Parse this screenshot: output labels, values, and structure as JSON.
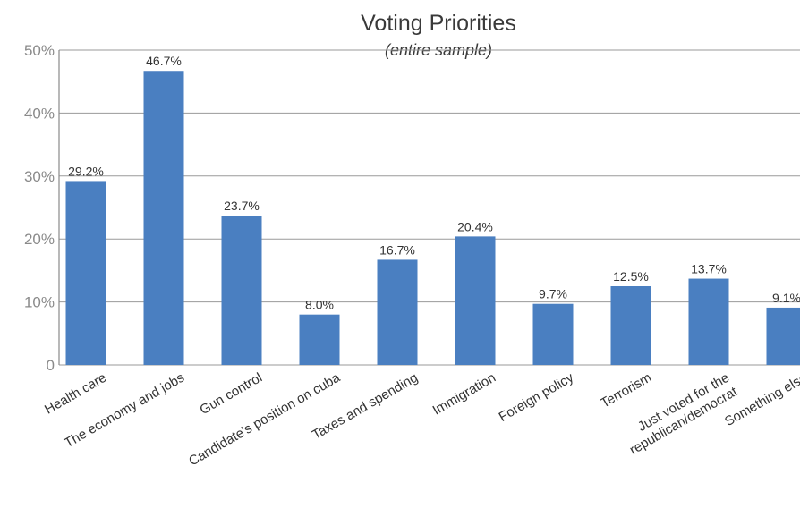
{
  "chart_data": {
    "type": "bar",
    "title": "Voting Priorities",
    "subtitle": "(entire sample)",
    "xlabel": "",
    "ylabel": "",
    "ylim": [
      0,
      50
    ],
    "y_ticks": [
      "0",
      "10%",
      "20%",
      "30%",
      "40%",
      "50%"
    ],
    "y_tick_values": [
      0,
      10,
      20,
      30,
      40,
      50
    ],
    "grid": true,
    "bar_color": "#4a7fc1",
    "categories": [
      [
        "Health care"
      ],
      [
        "The economy and jobs"
      ],
      [
        "Gun control"
      ],
      [
        "Candidate's position on cuba"
      ],
      [
        "Taxes and spending"
      ],
      [
        "Immigration"
      ],
      [
        "Foreign policy"
      ],
      [
        "Terrorism"
      ],
      [
        "Just voted for the",
        "republican/democrat"
      ],
      [
        "Something else"
      ]
    ],
    "values": [
      29.2,
      46.7,
      23.7,
      8.0,
      16.7,
      20.4,
      9.7,
      12.5,
      13.7,
      9.1
    ],
    "value_labels": [
      "29.2%",
      "46.7%",
      "23.7%",
      "8.0%",
      "16.7%",
      "20.4%",
      "9.7%",
      "12.5%",
      "13.7%",
      "9.1%"
    ]
  }
}
